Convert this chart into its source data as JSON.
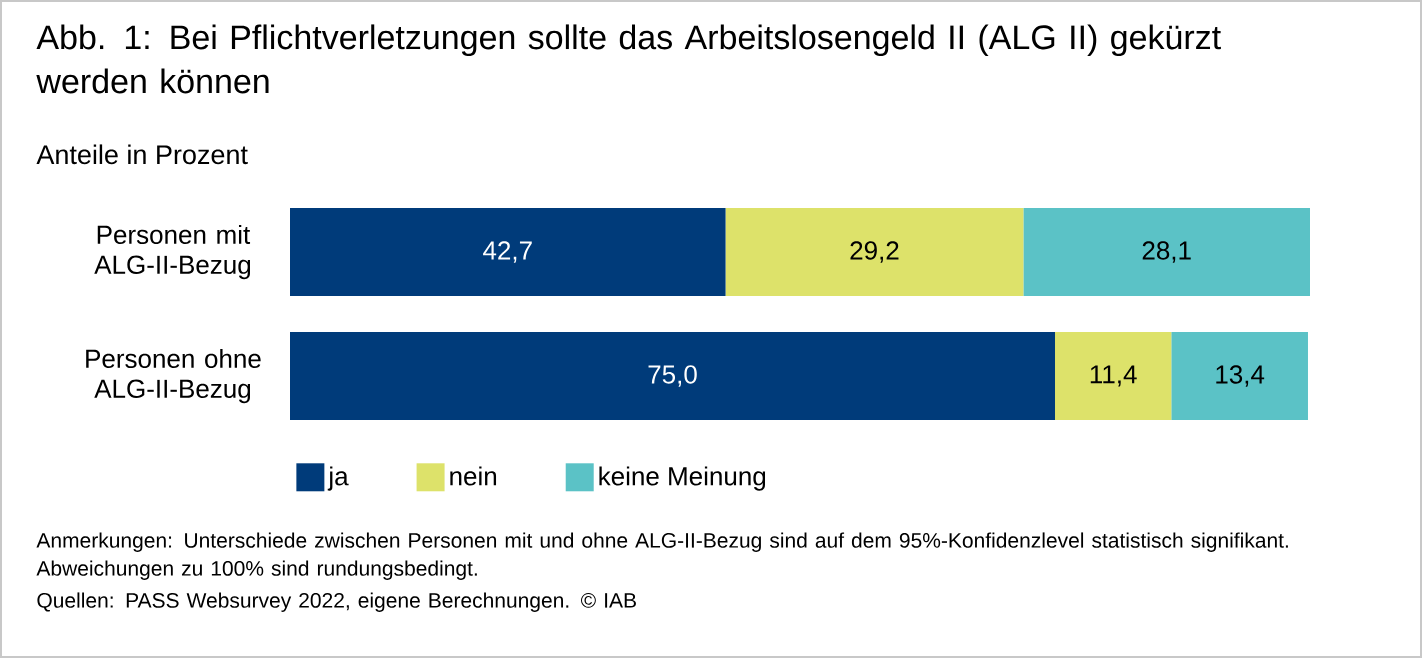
{
  "chart_data": {
    "type": "bar",
    "orientation": "horizontal",
    "stacked": true,
    "title": "Abb. 1: Bei Pflichtverletzungen sollte das Arbeitslosengeld II (ALG II) gekürzt werden können",
    "subtitle": "Anteile in Prozent",
    "categories": [
      "Personen mit ALG-II-Bezug",
      "Personen ohne ALG-II-Bezug"
    ],
    "series": [
      {
        "name": "ja",
        "color": "#003b7a",
        "values": [
          42.7,
          75.0
        ],
        "value_labels": [
          "42,7",
          "75,0"
        ]
      },
      {
        "name": "nein",
        "color": "#dde26a",
        "values": [
          29.2,
          11.4
        ],
        "value_labels": [
          "29,2",
          "11,4"
        ]
      },
      {
        "name": "keine Meinung",
        "color": "#5bc2c6",
        "values": [
          28.1,
          13.4
        ],
        "value_labels": [
          "28,1",
          "13,4"
        ]
      }
    ],
    "tick_labels": "y",
    "legend": "bottom left",
    "annotations": [
      "Anmerkungen: Unterschiede zwischen Personen mit und ohne ALG-II-Bezug sind auf dem 95%-Konfidenzlevel statistisch signifikant. Abweichungen zu 100% sind rundungsbedingt.",
      "Quellen: PASS Websurvey 2022, eigene Berechnungen. © IAB"
    ]
  }
}
